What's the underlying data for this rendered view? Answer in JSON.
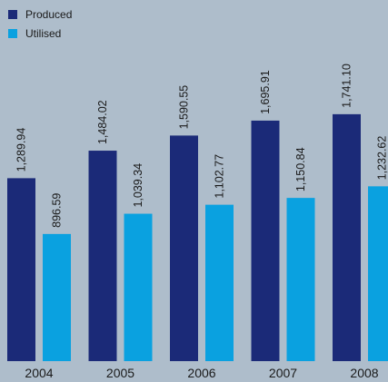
{
  "chart_data": {
    "type": "bar",
    "title": "",
    "xlabel": "",
    "ylabel": "",
    "categories": [
      "2004",
      "2005",
      "2006",
      "2007",
      "2008"
    ],
    "series": [
      {
        "name": "Produced",
        "color": "#1b2a78",
        "values": [
          1289.94,
          1484.02,
          1590.55,
          1695.91,
          1741.1
        ],
        "labels": [
          "1,289.94",
          "1,484.02",
          "1,590.55",
          "1,695.91",
          "1,741.10"
        ]
      },
      {
        "name": "Utilised",
        "color": "#0aa1e0",
        "values": [
          896.59,
          1039.34,
          1102.77,
          1150.84,
          1232.62
        ],
        "labels": [
          "896.59",
          "1,039.34",
          "1,102.77",
          "1,150.84",
          "1,232.62"
        ]
      }
    ],
    "ylim": [
      0,
      2100
    ],
    "grid": false,
    "legend_position": "top-left",
    "background_color": "#aebdcb"
  }
}
